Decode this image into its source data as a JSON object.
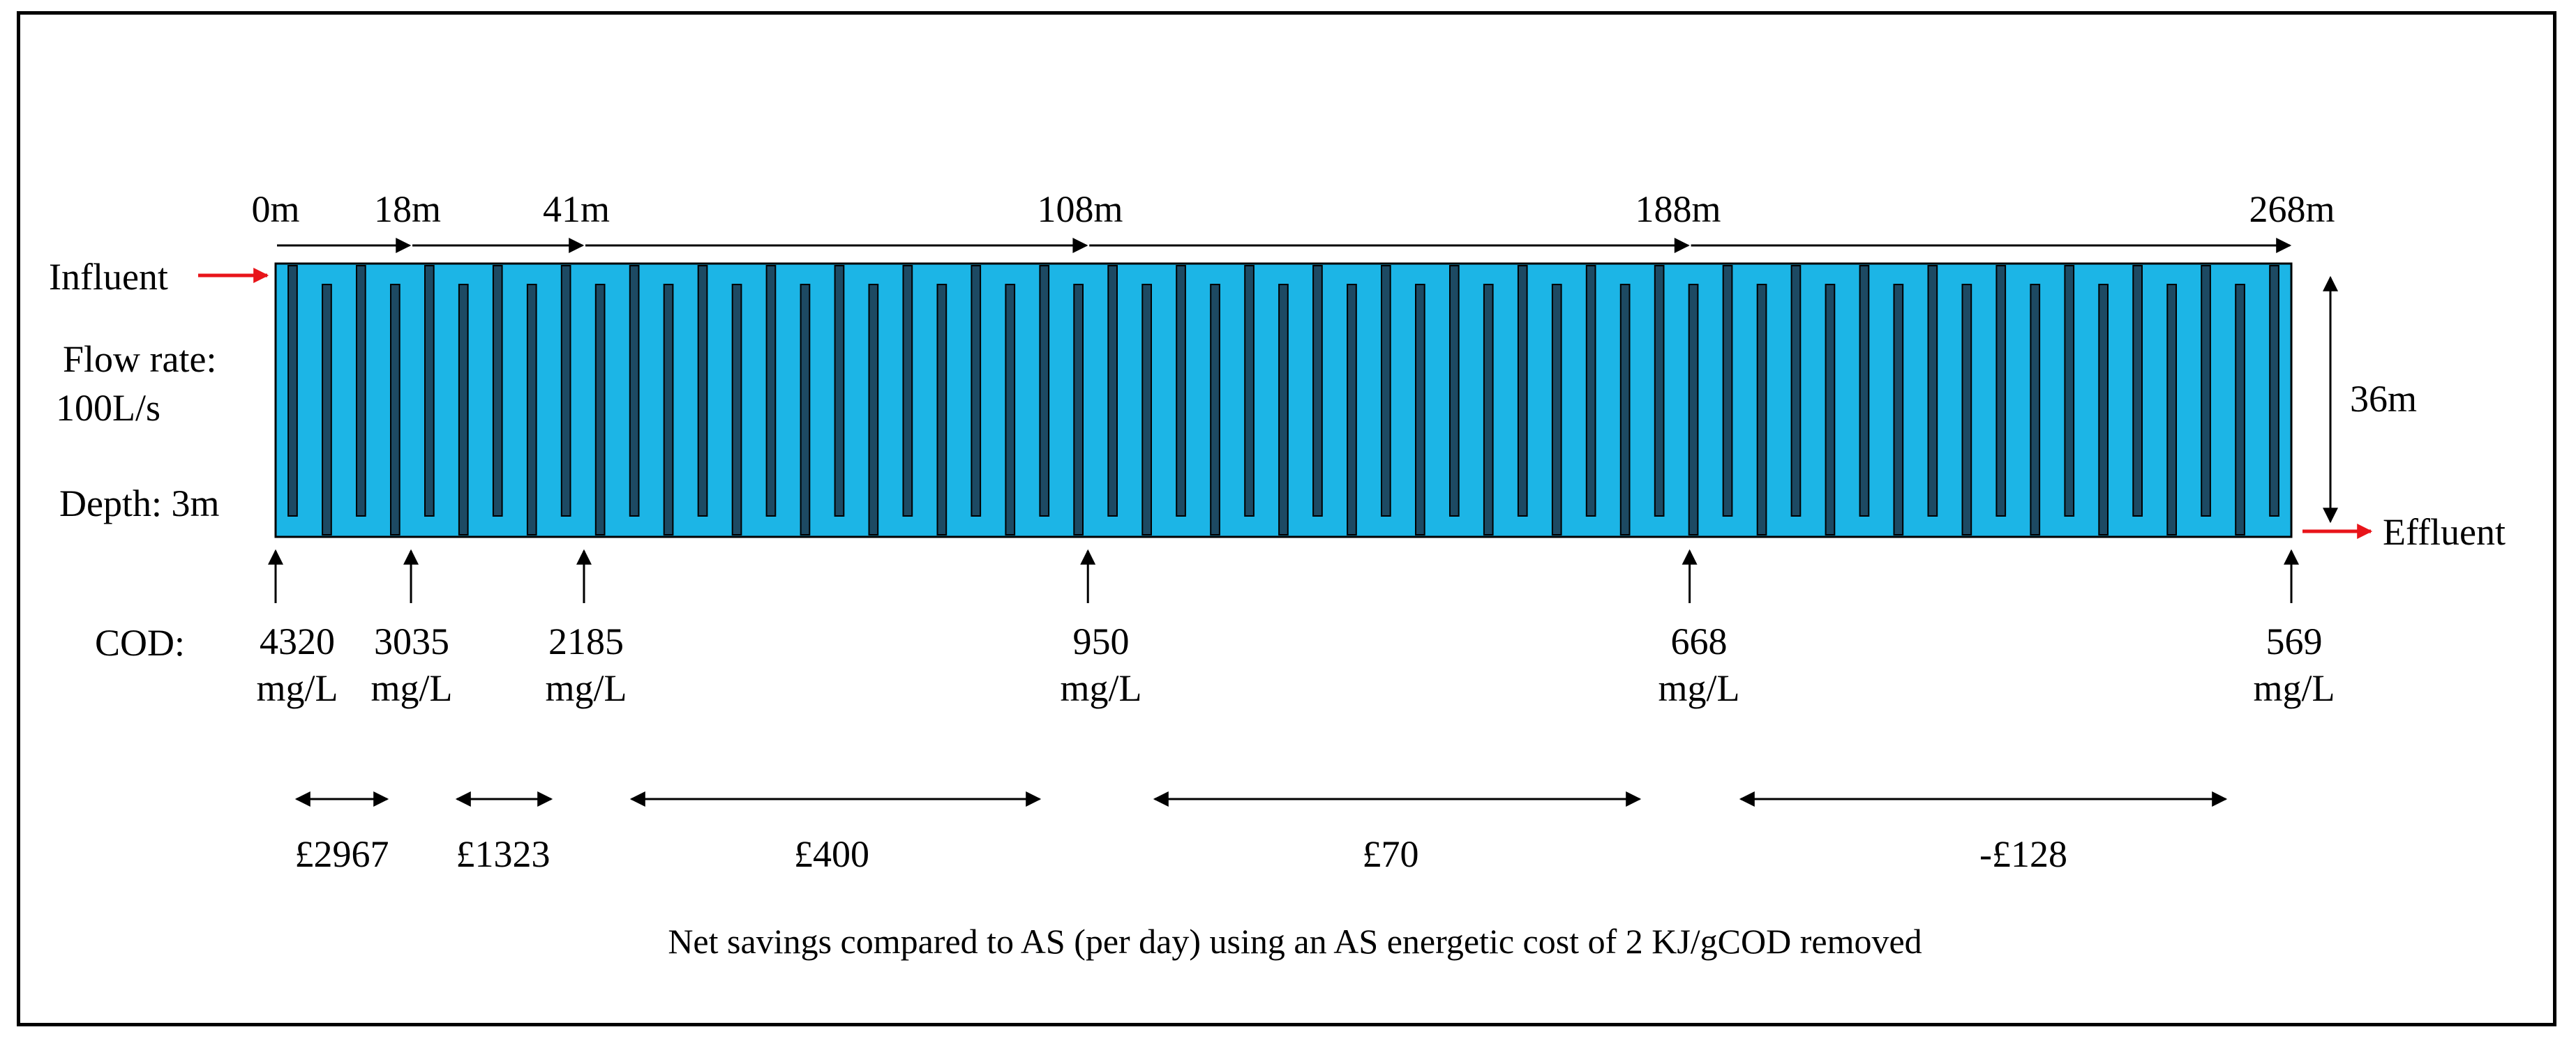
{
  "colors": {
    "channel_fill": "#1cb5e6",
    "baffle_fill": "#1d4a63",
    "inflow_arrow": "#e8141a",
    "line": "#000000"
  },
  "distance_markers": [
    {
      "label": "0m",
      "distance_m": 0
    },
    {
      "label": "18m",
      "distance_m": 18
    },
    {
      "label": "41m",
      "distance_m": 41
    },
    {
      "label": "108m",
      "distance_m": 108
    },
    {
      "label": "188m",
      "distance_m": 188
    },
    {
      "label": "268m",
      "distance_m": 268
    }
  ],
  "inlet": {
    "label": "Influent"
  },
  "outlet": {
    "label": "Effluent"
  },
  "flow_rate": {
    "label": "Flow rate:",
    "value": "100L/s"
  },
  "depth": {
    "label": "Depth: 3m"
  },
  "width_label": "36m",
  "reactor": {
    "baffle_count": 59
  },
  "cod": {
    "label": "COD:",
    "unit": "mg/L",
    "values": [
      "4320",
      "3035",
      "2185",
      "950",
      "668",
      "569"
    ]
  },
  "savings": [
    {
      "label": "£2967"
    },
    {
      "label": "£1323"
    },
    {
      "label": "£400"
    },
    {
      "label": "£70"
    },
    {
      "label": "-£128"
    }
  ],
  "caption": "Net savings compared to AS (per day) using an AS energetic cost of 2 KJ/gCOD removed"
}
